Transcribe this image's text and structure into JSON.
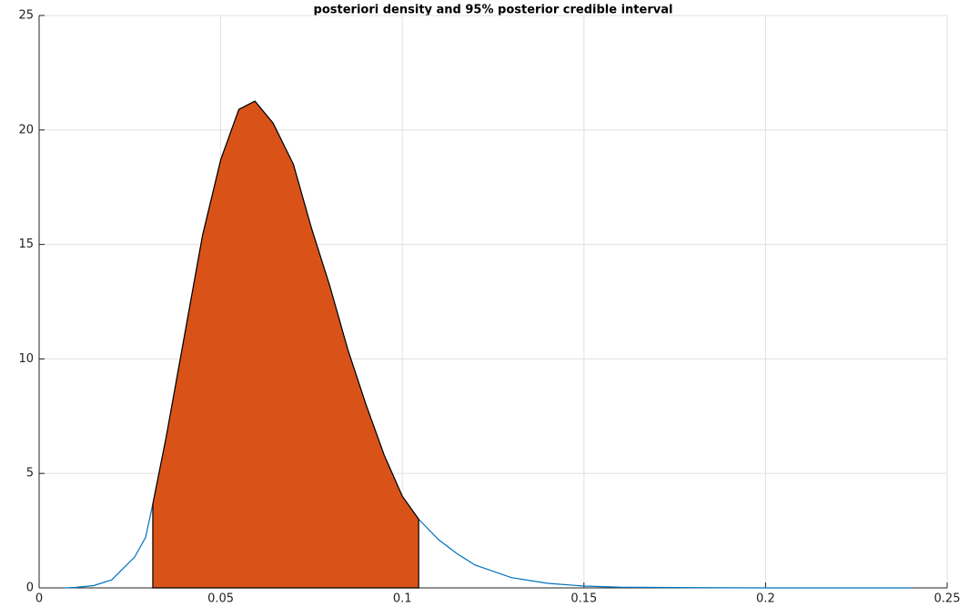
{
  "chart_data": {
    "type": "line",
    "title": "posteriori density and 95% posterior credible interval",
    "xlim": [
      0,
      0.25
    ],
    "xticks": [
      0,
      0.05,
      0.1,
      0.15,
      0.2,
      0.25
    ],
    "ylim": [
      0,
      25
    ],
    "yticks": [
      0,
      5,
      10,
      15,
      20,
      25
    ],
    "grid": true,
    "series": [
      {
        "type": "line",
        "color": "#0072bd",
        "x": [
          0.007,
          0.01,
          0.015,
          0.02,
          0.0263,
          0.0293,
          0.0313,
          0.035,
          0.04,
          0.045,
          0.05,
          0.055,
          0.0594,
          0.0644,
          0.07,
          0.075,
          0.08,
          0.085,
          0.09,
          0.095,
          0.1,
          0.1045,
          0.11,
          0.115,
          0.12,
          0.13,
          0.14,
          0.15,
          0.16,
          0.18,
          0.2,
          0.24
        ],
        "values": [
          0,
          0.02,
          0.1,
          0.35,
          1.35,
          2.2,
          3.66,
          6.6,
          11,
          15.4,
          18.7,
          20.9,
          21.26,
          20.3,
          18.5,
          15.7,
          13.2,
          10.4,
          8.0,
          5.8,
          4.0,
          3.0,
          2.1,
          1.5,
          1.0,
          0.45,
          0.2,
          0.08,
          0.03,
          0.01,
          0,
          0
        ]
      },
      {
        "type": "area",
        "color": "#d95319",
        "x": [
          0.0313,
          0.035,
          0.04,
          0.045,
          0.05,
          0.055,
          0.0594,
          0.0644,
          0.07,
          0.075,
          0.08,
          0.085,
          0.09,
          0.095,
          0.1,
          0.1045
        ],
        "values": [
          3.66,
          6.6,
          11,
          15.4,
          18.7,
          20.9,
          21.26,
          20.3,
          18.5,
          15.7,
          13.2,
          10.4,
          8.0,
          5.8,
          4.0,
          3.0
        ]
      }
    ]
  }
}
